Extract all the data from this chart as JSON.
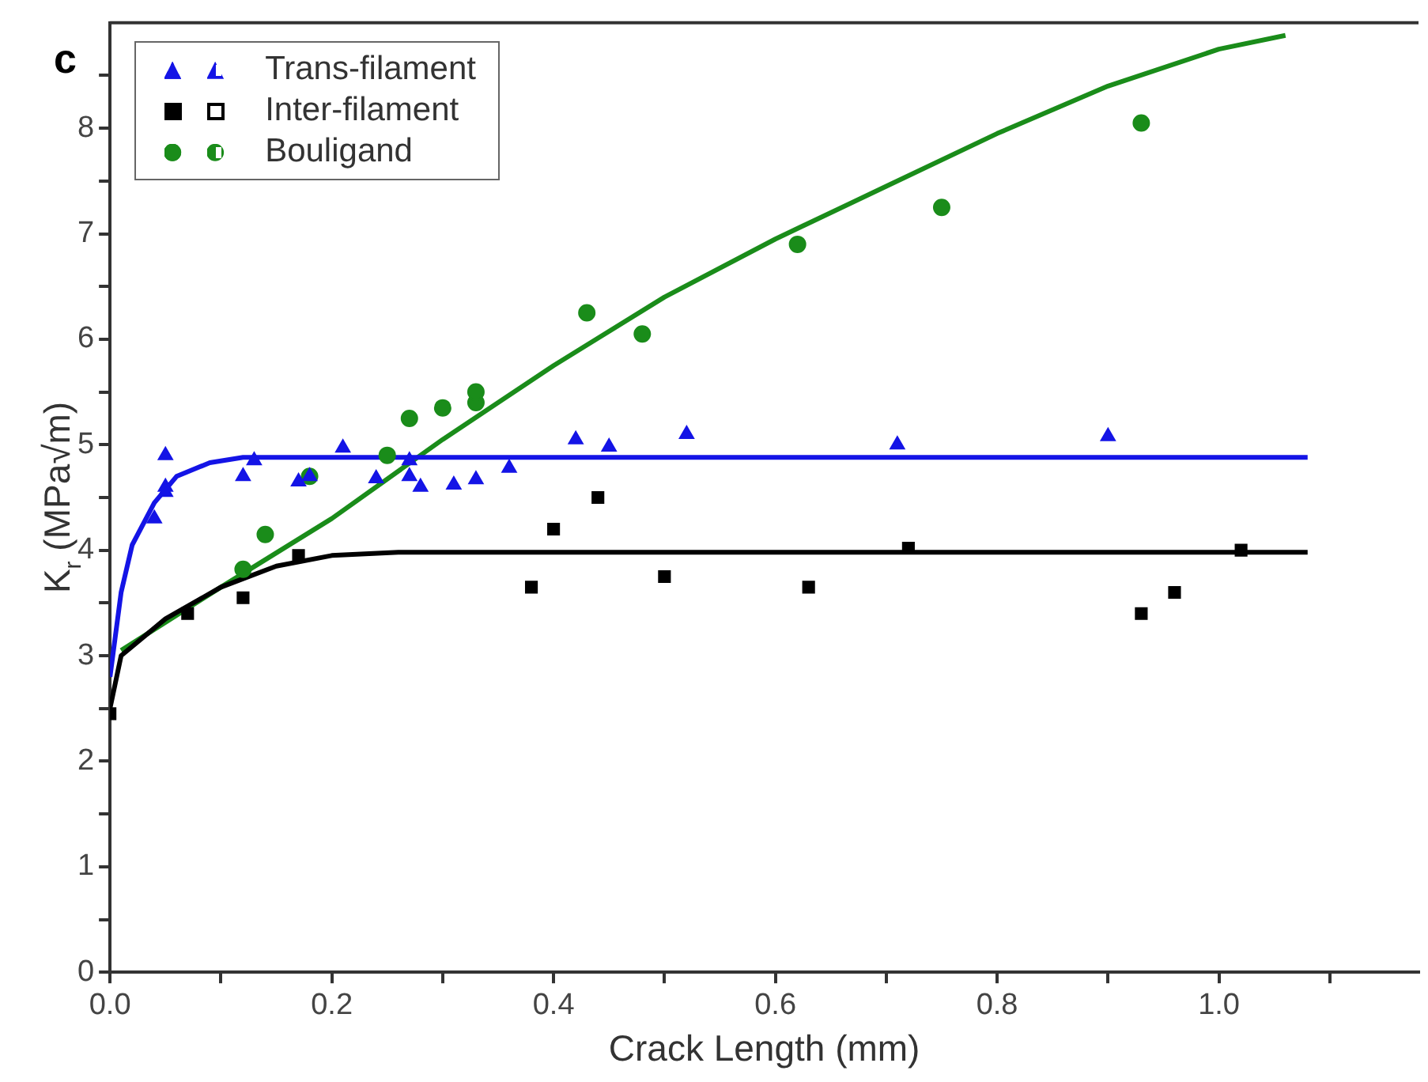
{
  "chart_data": {
    "type": "scatter",
    "title": "c",
    "xlabel": "Crack Length (mm)",
    "ylabel": "K$_{r}$ (MPa√m)",
    "xlim": [
      0,
      1.18
    ],
    "ylim": [
      0,
      9
    ],
    "xticks": [
      {
        "value": 0,
        "label": "0.0"
      },
      {
        "value": 0.1,
        "label": null
      },
      {
        "value": 0.2,
        "label": "0.2"
      },
      {
        "value": 0.3,
        "label": null
      },
      {
        "value": 0.4,
        "label": "0.4"
      },
      {
        "value": 0.5,
        "label": null
      },
      {
        "value": 0.6,
        "label": "0.6"
      },
      {
        "value": 0.7,
        "label": null
      },
      {
        "value": 0.8,
        "label": "0.8"
      },
      {
        "value": 0.9,
        "label": null
      },
      {
        "value": 1,
        "label": "1.0"
      },
      {
        "value": 1.1,
        "label": null
      }
    ],
    "yticks": [
      0,
      {
        "value": 0.5,
        "label": null
      },
      1,
      {
        "value": 1.5,
        "label": null
      },
      2,
      {
        "value": 2.5,
        "label": null
      },
      3,
      {
        "value": 3.5,
        "label": null
      },
      4,
      {
        "value": 4.5,
        "label": null
      },
      5,
      {
        "value": 5.5,
        "label": null
      },
      6,
      {
        "value": 6.5,
        "label": null
      },
      7,
      {
        "value": 7.5,
        "label": null
      },
      8,
      {
        "value": 8.5,
        "label": null
      }
    ],
    "grid": false,
    "legend": "top left",
    "series": [
      {
        "name": "Trans-filament",
        "type": "scatter",
        "marker": "triangle",
        "color": "#1414e6",
        "x": [
          0.05,
          0.05,
          0.05,
          0.04,
          0.12,
          0.13,
          0.17,
          0.18,
          0.21,
          0.24,
          0.27,
          0.27,
          0.28,
          0.31,
          0.33,
          0.36,
          0.42,
          0.45,
          0.52,
          0.71,
          0.9
        ],
        "values": [
          4.9,
          4.6,
          4.55,
          4.3,
          4.7,
          4.85,
          4.65,
          4.7,
          4.97,
          4.68,
          4.85,
          4.7,
          4.6,
          4.62,
          4.67,
          4.78,
          5.05,
          4.98,
          5.1,
          5.0,
          5.08
        ]
      },
      {
        "name": "Inter-filament",
        "type": "scatter",
        "marker": "square",
        "color": "#000000",
        "x": [
          0,
          0.07,
          0.12,
          0.17,
          0.38,
          0.4,
          0.44,
          0.5,
          0.63,
          0.72,
          0.93,
          0.96,
          1.02
        ],
        "values": [
          2.45,
          3.4,
          3.55,
          3.95,
          3.65,
          4.2,
          4.5,
          3.75,
          3.65,
          4.02,
          3.4,
          3.6,
          4.0
        ]
      },
      {
        "name": "Bouligand",
        "type": "scatter",
        "marker": "circle",
        "color": "#1a8c1a",
        "x": [
          0.12,
          0.14,
          0.18,
          0.25,
          0.27,
          0.3,
          0.33,
          0.33,
          0.43,
          0.48,
          0.62,
          0.75,
          0.93
        ],
        "values": [
          3.82,
          4.15,
          4.7,
          4.9,
          5.25,
          5.35,
          5.4,
          5.5,
          6.25,
          6.05,
          6.9,
          7.25,
          8.05
        ]
      },
      {
        "type": "line",
        "marker": "none",
        "color": "#1414e6",
        "x": [
          0,
          0.01,
          0.02,
          0.04,
          0.06,
          0.09,
          0.12,
          1.08
        ],
        "values": [
          2.8,
          3.6,
          4.05,
          4.45,
          4.7,
          4.83,
          4.88,
          4.88
        ]
      },
      {
        "type": "line",
        "marker": "none",
        "color": "#000000",
        "x": [
          0,
          0.01,
          0.05,
          0.1,
          0.15,
          0.2,
          0.26,
          1.08
        ],
        "values": [
          2.5,
          3.0,
          3.35,
          3.65,
          3.85,
          3.95,
          3.98,
          3.98
        ]
      },
      {
        "type": "line",
        "marker": "none",
        "color": "#1a8c1a",
        "x": [
          0.01,
          0.1,
          0.2,
          0.3,
          0.4,
          0.5,
          0.6,
          0.7,
          0.8,
          0.9,
          1.0,
          1.06
        ],
        "values": [
          3.05,
          3.65,
          4.3,
          5.05,
          5.75,
          6.4,
          6.95,
          7.45,
          7.95,
          8.4,
          8.75,
          8.88
        ]
      }
    ]
  }
}
